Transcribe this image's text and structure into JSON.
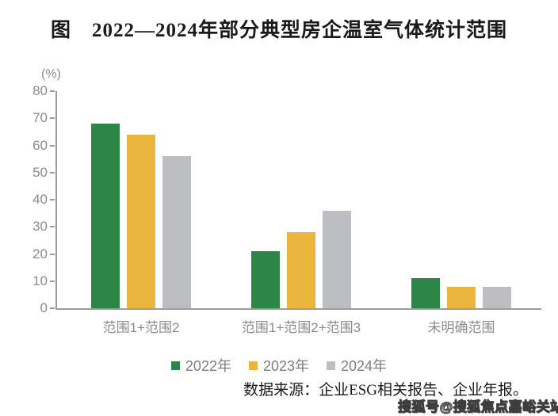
{
  "title": "图　2022—2024年部分典型房企温室气体统计范围",
  "chart_data": {
    "type": "bar",
    "title": "图 2022—2024年部分典型房企温室气体统计范围",
    "unit_label": "(%)",
    "categories": [
      "范围1+范围2",
      "范围1+范围2+范围3",
      "未明确范围"
    ],
    "series": [
      {
        "name": "2022年",
        "color": "#2E8548",
        "values": [
          68,
          21,
          11
        ]
      },
      {
        "name": "2023年",
        "color": "#EBB63D",
        "values": [
          64,
          28,
          8
        ]
      },
      {
        "name": "2024年",
        "color": "#BDBEC2",
        "values": [
          56,
          36,
          8
        ]
      }
    ],
    "ylim": [
      0,
      80
    ],
    "ytick_step": 10,
    "yticks": [
      0,
      10,
      20,
      30,
      40,
      50,
      60,
      70,
      80
    ],
    "grid": false,
    "legend_position": "bottom"
  },
  "source_note": "数据来源：企业ESG相关报告、企业年报。",
  "watermark": "搜狐号@搜狐焦点嘉峪关站",
  "colors": {
    "axis": "#9C9C9C",
    "tick_label": "#8C8C8C",
    "category_label": "#8C8C8C",
    "legend_label": "#7E7E7E",
    "title_text": "#1A1A1A",
    "source_text": "#1A1A1A"
  }
}
